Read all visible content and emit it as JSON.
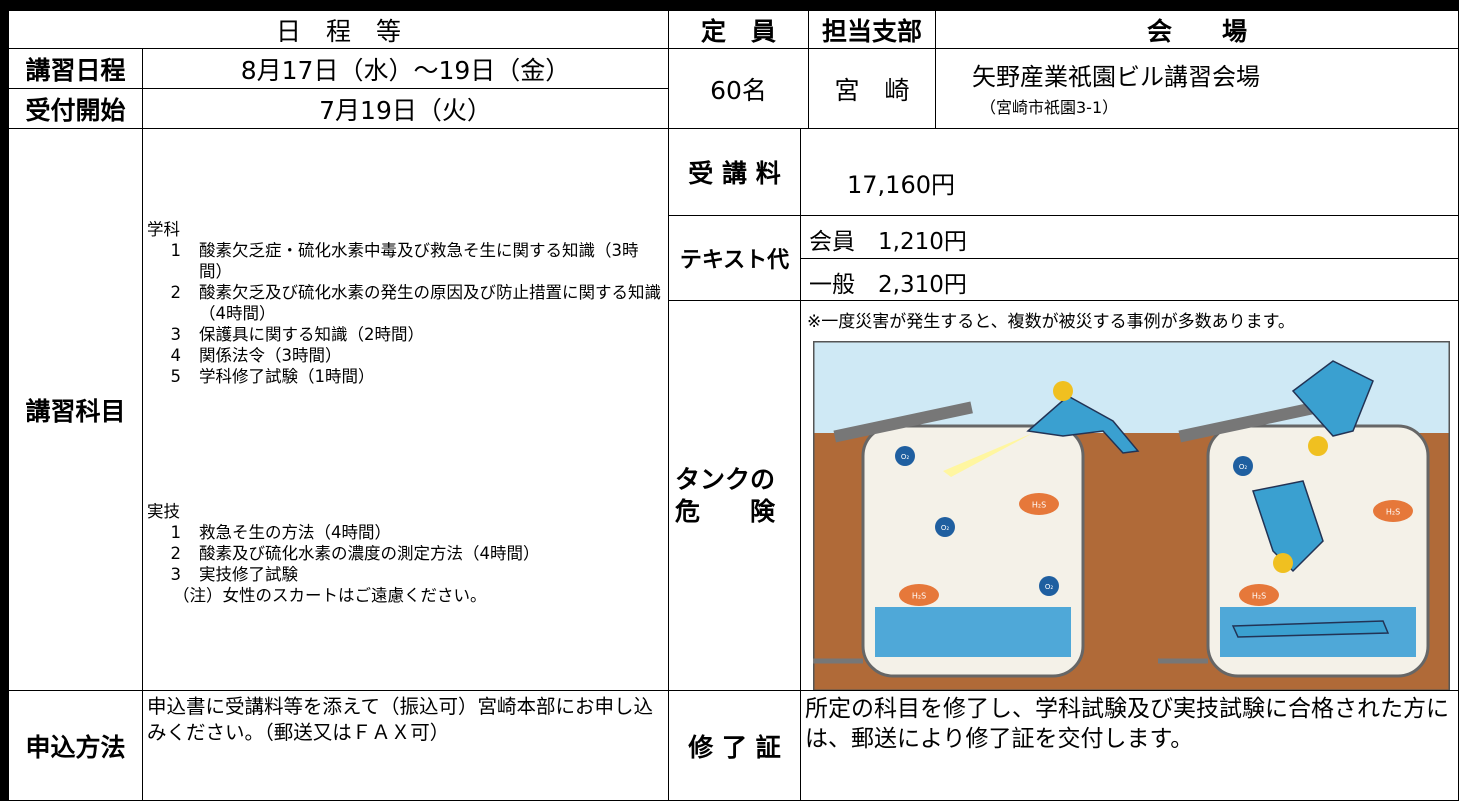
{
  "header": {
    "schedule": "日　程　等",
    "capacity": "定　員",
    "branch": "担当支部",
    "venue": "会　　場"
  },
  "course_dates": {
    "label": "講習日程",
    "value": "8月17日（水）～19日（金）"
  },
  "reception": {
    "label": "受付開始",
    "value": "7月19日（火）"
  },
  "capacity": "60名",
  "branch": "宮　崎",
  "venue": {
    "name": "矢野産業祇園ビル講習会場",
    "address": "（宮崎市祇園3-1）"
  },
  "subjects": {
    "label": "講習科目",
    "academic": {
      "heading": "学科",
      "items": [
        {
          "number": "1",
          "text": "酸素欠乏症・硫化水素中毒及び救急そ生に関する知識（3時間）"
        },
        {
          "number": "2",
          "text": "酸素欠乏及び硫化水素の発生の原因及び防止措置に関する知識（4時間）"
        },
        {
          "number": "3",
          "text": "保護具に関する知識（2時間）"
        },
        {
          "number": "4",
          "text": "関係法令（3時間）"
        },
        {
          "number": "5",
          "text": "学科修了試験（1時間）"
        }
      ]
    },
    "practical": {
      "heading": "実技",
      "items": [
        {
          "number": "1",
          "text": "救急そ生の方法（4時間）"
        },
        {
          "number": "2",
          "text": "酸素及び硫化水素の濃度の測定方法（4時間）"
        },
        {
          "number": "3",
          "text": "実技修了試験"
        }
      ],
      "note": "（注）女性のスカートはご遠慮ください。"
    }
  },
  "fee": {
    "label": "受 講 料",
    "value": "17,160円"
  },
  "textbook": {
    "label": "テキスト代",
    "member": "会員　1,210円",
    "general": "一般　2,310円"
  },
  "tank": {
    "label_lines": [
      "タンクの",
      "危　　険"
    ],
    "note": "※一度災害が発生すると、複数が被災する事例が多数あります。",
    "illustration_labels": {
      "oxygen": "O₂",
      "hydrogen_sulfide": "H₂S"
    }
  },
  "application": {
    "label": "申込方法",
    "text": "申込書に受講料等を添えて（振込可）宮崎本部にお申し込みください。（郵送又はＦＡＸ可）"
  },
  "certificate": {
    "label": "修 了 証",
    "text": "所定の科目を修了し、学科試験及び実技試験に合格された方には、郵送により修了証を交付します。"
  }
}
